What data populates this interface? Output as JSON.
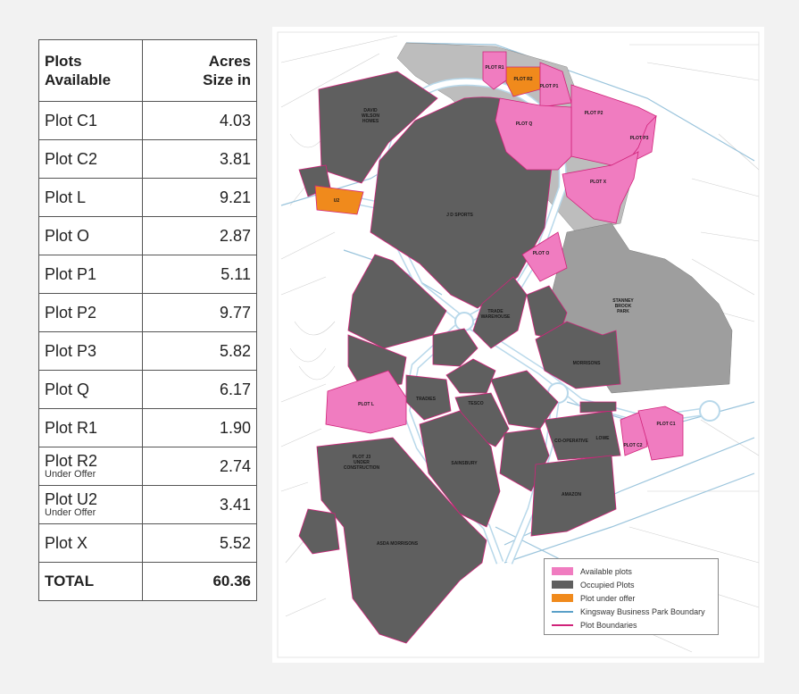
{
  "table": {
    "header_plot_line1": "Plots",
    "header_plot_line2": "Available",
    "header_acres_line1": "Acres",
    "header_acres_line2": "Size in",
    "rows": [
      {
        "name": "Plot C1",
        "sub": "",
        "acres": "4.03"
      },
      {
        "name": "Plot C2",
        "sub": "",
        "acres": "3.81"
      },
      {
        "name": "Plot L",
        "sub": "",
        "acres": "9.21"
      },
      {
        "name": "Plot O",
        "sub": "",
        "acres": "2.87"
      },
      {
        "name": "Plot P1",
        "sub": "",
        "acres": "5.11"
      },
      {
        "name": "Plot P2",
        "sub": "",
        "acres": "9.77"
      },
      {
        "name": "Plot P3",
        "sub": "",
        "acres": "5.82"
      },
      {
        "name": "Plot Q",
        "sub": "",
        "acres": "6.17"
      },
      {
        "name": "Plot R1",
        "sub": "",
        "acres": "1.90"
      },
      {
        "name": "Plot R2",
        "sub": "Under Offer",
        "acres": "2.74"
      },
      {
        "name": "Plot U2",
        "sub": "Under Offer",
        "acres": "3.41"
      },
      {
        "name": "Plot X",
        "sub": "",
        "acres": "5.52"
      }
    ],
    "total_label": "TOTAL",
    "total_value": "60.36"
  },
  "map": {
    "labels": {
      "david_wilson": [
        "DAVID",
        "WILSON",
        "HOMES"
      ],
      "jd_sports": "J D SPORTS",
      "u2": "U2",
      "plot_r1": "PLOT R1",
      "plot_r2": "PLOT R2",
      "plot_p1": "PLOT P1",
      "plot_p2": "PLOT P2",
      "plot_p3": "PLOT P3",
      "plot_q": "PLOT Q",
      "plot_x": "PLOT X",
      "plot_o": "PLOT O",
      "plot_l": "PLOT L",
      "plot_c1": "PLOT C1",
      "plot_c2": "PLOT C2",
      "stanney": [
        "STANNEY",
        "BROOK",
        "PARK"
      ],
      "plot_j3": [
        "PLOT J3",
        "UNDER",
        "CONSTRUCTION"
      ],
      "amazon": "AMAZON",
      "co_operative": "CO-OPERATIVE",
      "lowe": "LOWE",
      "asda": "ASDA MORRISONS",
      "trade": [
        "TRADE",
        "WAREHOUSE"
      ],
      "sainsbury": "SAINSBURY",
      "tesco": "TESCO",
      "tradies": "TRADIES",
      "morrisons": "MORRISONS"
    },
    "colors": {
      "available": "#f07cc0",
      "occupied": "#5f5f5f",
      "under_offer": "#f08a1c",
      "boundary": "#5aa0c8",
      "plot_boundary": "#d0237a"
    }
  },
  "legend": {
    "available": "Available plots",
    "occupied": "Occupied Plots",
    "under_offer": "Plot under offer",
    "park_boundary": "Kingsway Business Park Boundary",
    "plot_boundaries": "Plot Boundaries"
  }
}
